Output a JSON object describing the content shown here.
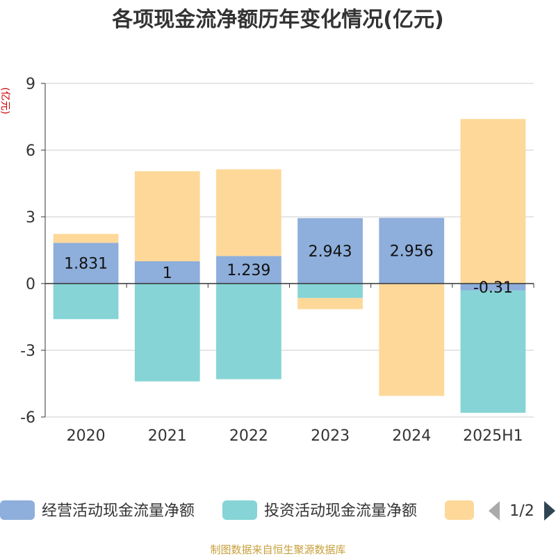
{
  "colors": {
    "operating": "#8eaedb",
    "investing": "#86d4d6",
    "financing": "#fed899",
    "axis": "#333333",
    "grid": "#cccccc",
    "pager_active": "#2f4554",
    "pager_inactive": "#aaaaaa"
  },
  "chart_data": {
    "type": "bar",
    "stacked": true,
    "title": "各项现金流净额历年变化情况(亿元)",
    "ylabel": "(亿元)",
    "ylim": [
      -6,
      9
    ],
    "yticks": [
      -6,
      -3,
      0,
      3,
      6,
      9
    ],
    "categories": [
      "2020",
      "2021",
      "2022",
      "2023",
      "2024",
      "2025H1"
    ],
    "series": [
      {
        "name": "经营活动现金流量净额",
        "values": [
          1.831,
          1,
          1.239,
          2.943,
          2.956,
          -0.31
        ]
      },
      {
        "name": "投资活动现金流量净额",
        "values": [
          -1.6,
          -4.4,
          -4.3,
          -0.65,
          0,
          -5.5
        ]
      },
      {
        "name": "",
        "values": [
          0.4,
          4.05,
          3.9,
          -0.5,
          -5.05,
          7.4
        ]
      }
    ],
    "data_labels": [
      "1.831",
      "1",
      "1.239",
      "2.943",
      "2.956",
      "-0.31"
    ],
    "grid": true,
    "legend_position": "bottom"
  },
  "legend": {
    "page": "1/2"
  },
  "source": "制图数据来自恒生聚源数据库"
}
